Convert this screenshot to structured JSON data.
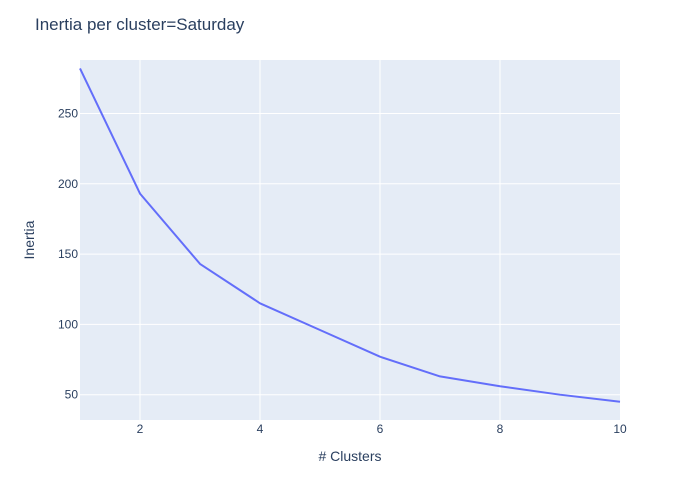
{
  "chart_data": {
    "type": "line",
    "title": "Inertia per cluster=Saturday",
    "xlabel": "# Clusters",
    "ylabel": "Inertia",
    "x": [
      1,
      2,
      3,
      4,
      5,
      6,
      7,
      8,
      9,
      10
    ],
    "series": [
      {
        "values": [
          282,
          193,
          143,
          115,
          96,
          77,
          63,
          56,
          50,
          45
        ],
        "color": "#636efa"
      }
    ],
    "xlim": [
      1,
      10
    ],
    "ylim": [
      32,
      288
    ],
    "xticks": [
      2,
      4,
      6,
      8,
      10
    ],
    "yticks": [
      50,
      100,
      150,
      200,
      250
    ],
    "grid": true,
    "plot_background": "#e5ecf6",
    "line_color": "#636efa",
    "text_color": "#2a3f5f"
  }
}
